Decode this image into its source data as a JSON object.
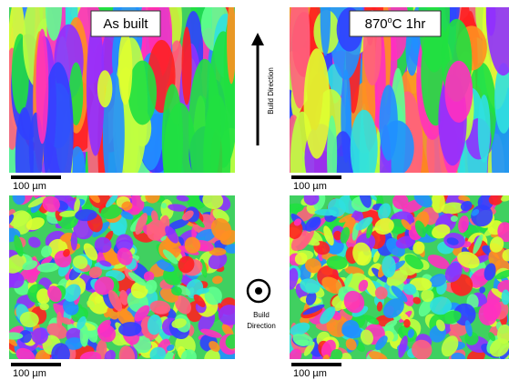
{
  "panels": [
    {
      "label": "As built",
      "scale_bar": "100 µm"
    },
    {
      "label": {
        "base": "870",
        "superscript": "o",
        "rest": "C 1hr"
      },
      "scale_bar": "100 µm"
    },
    {
      "scale_bar": "100 µm"
    },
    {
      "scale_bar": "100 µm"
    }
  ],
  "build_direction_top": "Build Direction",
  "build_direction_bottom": {
    "line1": "Build",
    "line2": "Direction"
  }
}
